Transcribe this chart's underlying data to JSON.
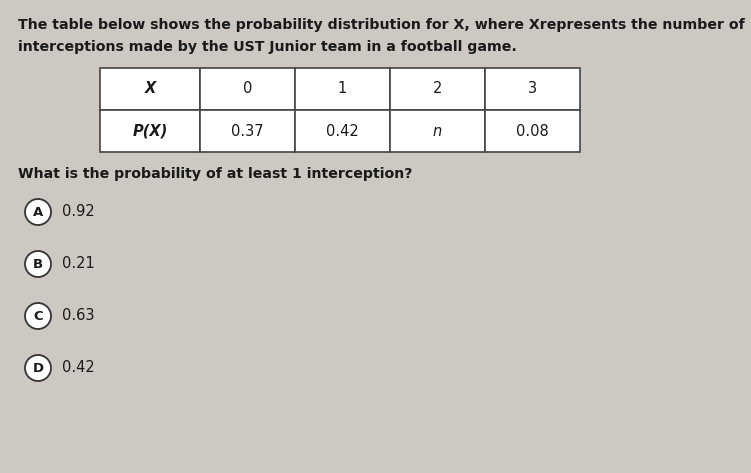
{
  "bg_color": "#cdc8c2",
  "text_color": "#1a1a1a",
  "line1": "The table below shows the probability distribution for X, where Xrepresents the number of",
  "line2": "interceptions made by the UST Junior team in a football game.",
  "table_headers": [
    "X",
    "0",
    "1",
    "2",
    "3"
  ],
  "table_row": [
    "P(X)",
    "0.37",
    "0.42",
    "n",
    "0.08"
  ],
  "question": "What is the probability of at least 1 interception?",
  "choices": [
    "A",
    "B",
    "C",
    "D"
  ],
  "choice_values": [
    "0.92",
    "0.21",
    "0.63",
    "0.42"
  ]
}
